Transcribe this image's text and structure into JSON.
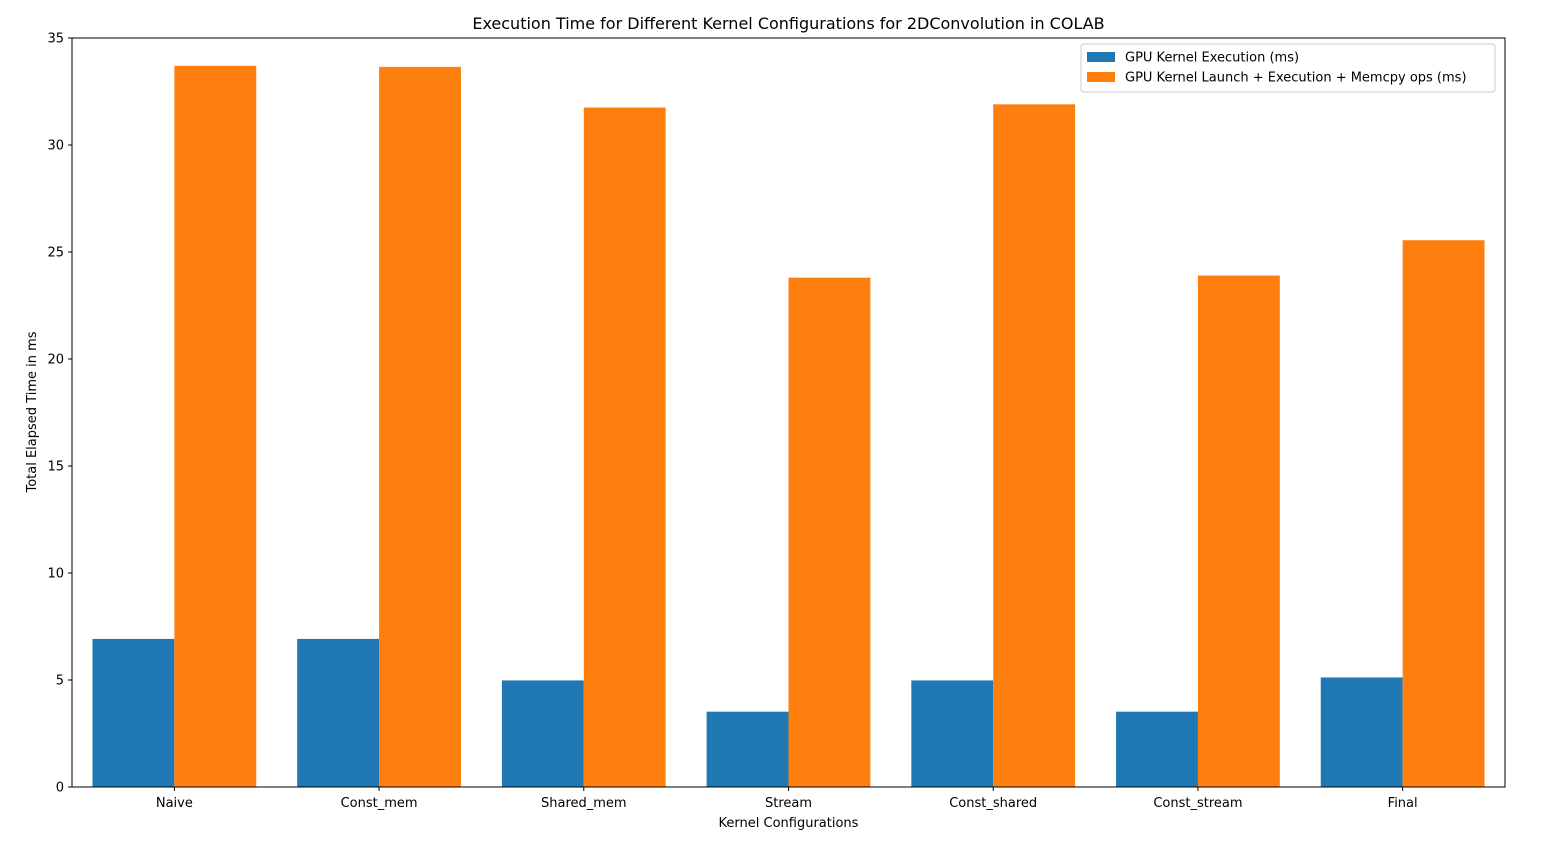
{
  "chart_data": {
    "type": "bar",
    "title": "Execution Time for Different Kernel Configurations for 2DConvolution in COLAB",
    "xlabel": "Kernel Configurations",
    "ylabel": "Total Elapsed Time in ms",
    "categories": [
      "Naive",
      "Const_mem",
      "Shared_mem",
      "Stream",
      "Const_shared",
      "Const_stream",
      "Final"
    ],
    "series": [
      {
        "name": "GPU Kernel Execution (ms)",
        "color": "#1f77b4",
        "values": [
          6.92,
          6.92,
          4.98,
          3.52,
          4.98,
          3.52,
          5.12
        ]
      },
      {
        "name": "GPU Kernel Launch + Execution + Memcpy ops (ms)",
        "color": "#ff7f0e",
        "values": [
          33.7,
          33.65,
          31.75,
          23.8,
          31.9,
          23.9,
          25.55
        ]
      }
    ],
    "ylim": [
      0,
      35
    ],
    "yticks": [
      0,
      5,
      10,
      15,
      20,
      25,
      30,
      35
    ],
    "grid": false,
    "legend_position": "top-right"
  }
}
